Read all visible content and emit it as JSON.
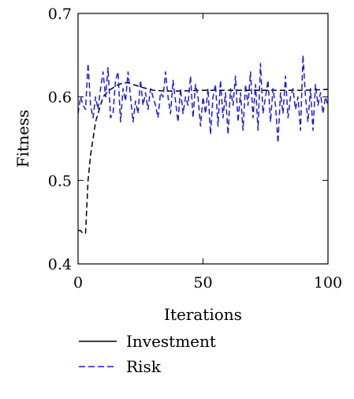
{
  "chart_data": {
    "type": "line",
    "xlabel": "Iterations",
    "ylabel": "Fitness",
    "xlim": [
      0,
      100
    ],
    "ylim": [
      0.4,
      0.7
    ],
    "xticks": [
      0,
      50,
      100
    ],
    "xtick_labels": [
      "0",
      "50",
      "100"
    ],
    "yticks": [
      0.4,
      0.5,
      0.6,
      0.7
    ],
    "ytick_labels": [
      "0.4",
      "0.5",
      "0.6",
      "0.7"
    ],
    "grid": false,
    "legend_position": "bottom",
    "series": [
      {
        "name": "Investment",
        "color": "#000000",
        "dash": "dashed",
        "x": [
          0,
          1,
          2,
          3,
          4,
          5,
          6,
          7,
          8,
          9,
          10,
          12,
          15,
          18,
          20,
          25,
          30,
          35,
          40,
          50,
          60,
          70,
          80,
          90,
          100
        ],
        "y": [
          0.44,
          0.44,
          0.436,
          0.437,
          0.5,
          0.53,
          0.55,
          0.57,
          0.58,
          0.59,
          0.6,
          0.607,
          0.613,
          0.617,
          0.617,
          0.612,
          0.608,
          0.607,
          0.607,
          0.608,
          0.608,
          0.608,
          0.608,
          0.608,
          0.609
        ]
      },
      {
        "name": "Risk",
        "color": "#1a1adb",
        "dash": "dashed",
        "x": [
          0,
          1,
          2,
          3,
          4,
          5,
          6,
          7,
          8,
          9,
          10,
          11,
          12,
          13,
          14,
          15,
          16,
          17,
          18,
          19,
          20,
          21,
          22,
          23,
          24,
          25,
          26,
          27,
          28,
          29,
          30,
          31,
          32,
          33,
          34,
          35,
          36,
          37,
          38,
          39,
          40,
          41,
          42,
          43,
          44,
          45,
          46,
          47,
          48,
          49,
          50,
          51,
          52,
          53,
          54,
          55,
          56,
          57,
          58,
          59,
          60,
          61,
          62,
          63,
          64,
          65,
          66,
          67,
          68,
          69,
          70,
          71,
          72,
          73,
          74,
          75,
          76,
          77,
          78,
          79,
          80,
          81,
          82,
          83,
          84,
          85,
          86,
          87,
          88,
          89,
          90,
          91,
          92,
          93,
          94,
          95,
          96,
          97,
          98,
          99,
          100
        ],
        "y": [
          0.58,
          0.6,
          0.59,
          0.585,
          0.64,
          0.59,
          0.575,
          0.6,
          0.585,
          0.61,
          0.63,
          0.6,
          0.635,
          0.575,
          0.58,
          0.62,
          0.63,
          0.57,
          0.61,
          0.595,
          0.63,
          0.6,
          0.57,
          0.595,
          0.58,
          0.62,
          0.59,
          0.605,
          0.585,
          0.61,
          0.6,
          0.59,
          0.575,
          0.605,
          0.6,
          0.63,
          0.6,
          0.58,
          0.62,
          0.595,
          0.57,
          0.61,
          0.58,
          0.6,
          0.59,
          0.625,
          0.575,
          0.615,
          0.6,
          0.565,
          0.6,
          0.58,
          0.61,
          0.555,
          0.6,
          0.615,
          0.565,
          0.62,
          0.575,
          0.605,
          0.555,
          0.61,
          0.59,
          0.625,
          0.57,
          0.605,
          0.56,
          0.615,
          0.59,
          0.63,
          0.575,
          0.615,
          0.56,
          0.64,
          0.58,
          0.6,
          0.62,
          0.57,
          0.61,
          0.59,
          0.545,
          0.605,
          0.58,
          0.625,
          0.575,
          0.6,
          0.61,
          0.585,
          0.6,
          0.56,
          0.65,
          0.6,
          0.57,
          0.61,
          0.56,
          0.615,
          0.59,
          0.605,
          0.58,
          0.6,
          0.59
        ]
      }
    ]
  }
}
